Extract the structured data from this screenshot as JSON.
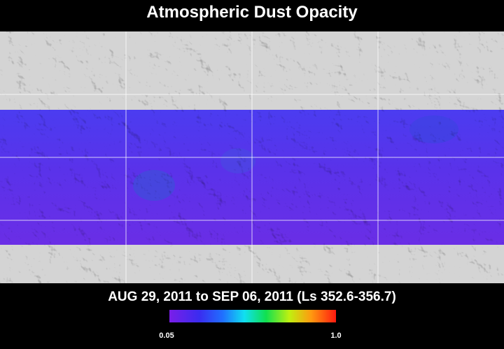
{
  "title": "Atmospheric Dust Opacity",
  "date_range": "AUG 29, 2011 to SEP 06, 2011 (Ls 352.6-356.7)",
  "colorbar": {
    "min_label": "0.05",
    "max_label": "1.0"
  }
}
